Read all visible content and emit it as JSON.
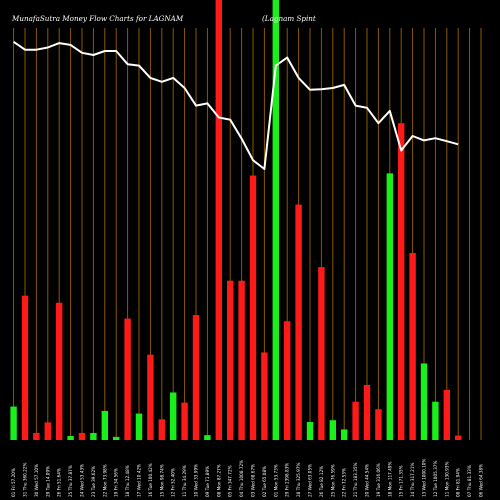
{
  "chart_data": {
    "type": "bar",
    "title": "MunafaSutra  Money Flow  Charts for LAGNAM",
    "subtitle": "(Lagnam Spint",
    "bar_colors": {
      "up": "#19f019",
      "down": "#ff1a1a",
      "line": "#ffffff",
      "gridline": "#8a5a00",
      "background": "#000000"
    },
    "ylim": [
      0,
      100
    ],
    "categories": [
      "01 Fri 57.20%",
      "31 Thu 360.22%",
      "30 Wed 57.10%",
      "29 Tue 14.09%",
      "26 Fri 51.64%",
      "25 Thu 37.87%",
      "24 Wed 53.43%",
      "23 Tue 39.62%",
      "22 Mon 73.98%",
      "19 Fri 34.56%",
      "18 Thu 12.48%",
      "17 Wed 10.42%",
      "16 Tue 100.42%",
      "15 Mon 98.74%",
      "12 Fri 32.40%",
      "11 Thu 34.29%",
      "10 Wed 33.99%",
      "09 Tue 71.89%",
      "08 Mon 87.27%",
      "05 Fri 347.72%",
      "04 Thu 1008.72%",
      "03 Wed 68.67%",
      "02 Tue 65.08%",
      "01 Mon 53.73%",
      "29 Fri 2398.83%",
      "28 Thu 325.97%",
      "27 Wed 63.05%",
      "26 Tue 82.12%",
      "25 Mon 76.59%",
      "22 Fri 72.53%",
      "21 Thu 183.35%",
      "20 Wed 44.54%",
      "19 Tue 316.06%",
      "18 Mon 117.49%",
      "15 Fri 171.35%",
      "14 Thu 317.21%",
      "13 Wed 1000.10%",
      "12 Tue 1005.37%",
      "11 Mon 130.93%",
      "08 Fri 81.94%",
      "07 Thu 81.33%",
      "06 Wed 64.38%"
    ],
    "series": [
      {
        "values": [
          7.6,
          32.8,
          1.6,
          4.0,
          31.2,
          0.9,
          1.6,
          1.6,
          6.6,
          0.7,
          27.6,
          6.0,
          19.4,
          4.7,
          10.8,
          8.5,
          28.4,
          1.1,
          100,
          36.2,
          36.2,
          60.1,
          19.9,
          100,
          27.0,
          53.5,
          4.1,
          39.3,
          4.5,
          2.4,
          8.7,
          12.5,
          7.0,
          60.6,
          72.0,
          42.5,
          17.4,
          8.7,
          11.4,
          1.0,
          0,
          0
        ],
        "direction": [
          "up",
          "down",
          "down",
          "down",
          "down",
          "up",
          "down",
          "up",
          "up",
          "up",
          "down",
          "up",
          "down",
          "down",
          "up",
          "down",
          "down",
          "up",
          "down",
          "down",
          "down",
          "down",
          "down",
          "up",
          "down",
          "down",
          "up",
          "down",
          "up",
          "up",
          "down",
          "down",
          "down",
          "up",
          "down",
          "down",
          "up",
          "up",
          "down",
          "down",
          "up",
          "up"
        ]
      },
      {
        "values": [
          90.5,
          88.7,
          88.7,
          89.2,
          90.2,
          89.8,
          88.0,
          87.5,
          88.4,
          88.4,
          85.4,
          85.1,
          82.3,
          81.4,
          82.3,
          80.0,
          76.0,
          76.5,
          73.3,
          72.8,
          68.5,
          63.6,
          61.6,
          85.1,
          86.9,
          82.3,
          79.6,
          79.7,
          80.0,
          80.7,
          76.0,
          75.5,
          72.0,
          74.8,
          65.8,
          69.1,
          68.1,
          68.6,
          67.9,
          67.2,
          0,
          0
        ]
      }
    ]
  }
}
